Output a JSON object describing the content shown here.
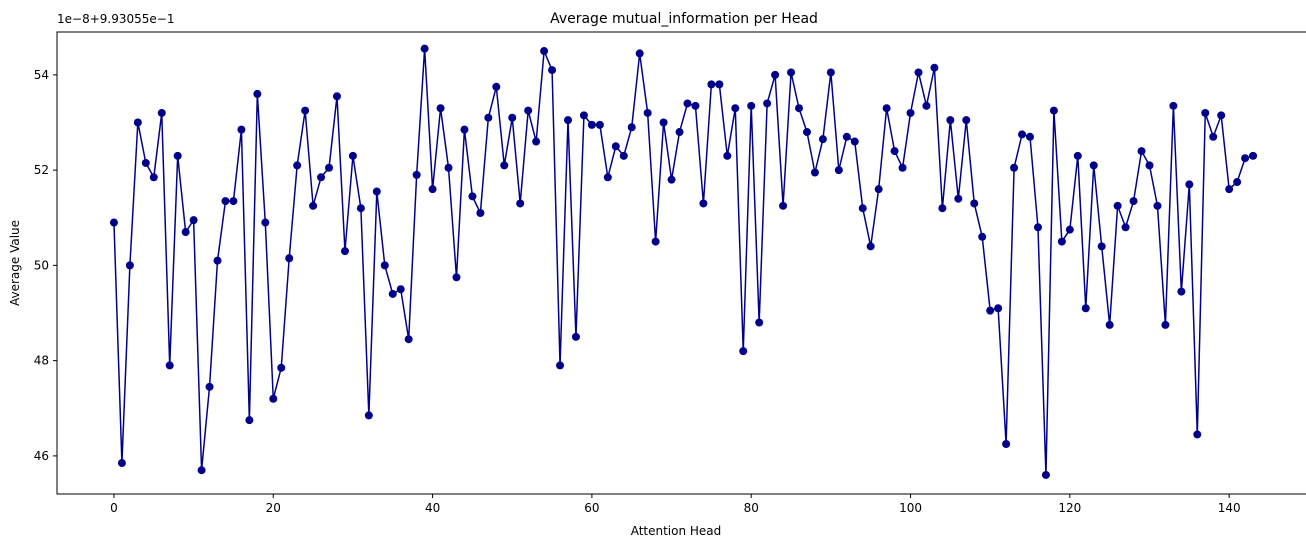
{
  "chart_data": {
    "type": "line",
    "title": "Average mutual_information per Head",
    "xlabel": "Attention Head",
    "ylabel": "Average Value",
    "offset_label": "1e−8+9.93055e−1",
    "xlim": [
      -7.15,
      150.15
    ],
    "ylim": [
      45.2,
      54.9
    ],
    "xticks": [
      0,
      20,
      40,
      60,
      80,
      100,
      120,
      140
    ],
    "yticks": [
      46,
      48,
      50,
      52,
      54
    ],
    "grid": false,
    "legend": "none",
    "series": [
      {
        "color": "#00008b",
        "marker": "circle",
        "x": [
          0,
          1,
          2,
          3,
          4,
          5,
          6,
          7,
          8,
          9,
          10,
          11,
          12,
          13,
          14,
          15,
          16,
          17,
          18,
          19,
          20,
          21,
          22,
          23,
          24,
          25,
          26,
          27,
          28,
          29,
          30,
          31,
          32,
          33,
          34,
          35,
          36,
          37,
          38,
          39,
          40,
          41,
          42,
          43,
          44,
          45,
          46,
          47,
          48,
          49,
          50,
          51,
          52,
          53,
          54,
          55,
          56,
          57,
          58,
          59,
          60,
          61,
          62,
          63,
          64,
          65,
          66,
          67,
          68,
          69,
          70,
          71,
          72,
          73,
          74,
          75,
          76,
          77,
          78,
          79,
          80,
          81,
          82,
          83,
          84,
          85,
          86,
          87,
          88,
          89,
          90,
          91,
          92,
          93,
          94,
          95,
          96,
          97,
          98,
          99,
          100,
          101,
          102,
          103,
          104,
          105,
          106,
          107,
          108,
          109,
          110,
          111,
          112,
          113,
          114,
          115,
          116,
          117,
          118,
          119,
          120,
          121,
          122,
          123,
          124,
          125,
          126,
          127,
          128,
          129,
          130,
          131,
          132,
          133,
          134,
          135,
          136,
          137,
          138,
          139,
          140,
          141,
          142,
          143
        ],
        "values": [
          50.9,
          45.85,
          50.0,
          53.0,
          52.15,
          51.85,
          53.2,
          47.9,
          52.3,
          50.7,
          50.95,
          45.7,
          47.45,
          50.1,
          51.35,
          51.35,
          52.85,
          46.75,
          53.6,
          50.9,
          47.2,
          47.85,
          50.15,
          52.1,
          53.25,
          51.25,
          51.85,
          52.05,
          53.55,
          50.3,
          52.3,
          51.2,
          46.85,
          51.55,
          50.0,
          49.4,
          49.5,
          48.45,
          51.9,
          54.55,
          51.6,
          53.3,
          52.05,
          49.75,
          52.85,
          51.45,
          51.1,
          53.1,
          53.75,
          52.1,
          53.1,
          51.3,
          53.25,
          52.6,
          54.5,
          54.1,
          47.9,
          53.05,
          48.5,
          53.15,
          52.95,
          52.95,
          51.85,
          52.5,
          52.3,
          52.9,
          54.45,
          53.2,
          50.5,
          53.0,
          51.8,
          52.8,
          53.4,
          53.35,
          51.3,
          53.8,
          53.8,
          52.3,
          53.3,
          48.2,
          53.35,
          48.8,
          53.4,
          54.0,
          51.25,
          54.05,
          53.3,
          52.8,
          51.95,
          52.65,
          54.05,
          52.0,
          52.7,
          52.6,
          51.2,
          50.4,
          51.6,
          53.3,
          52.4,
          52.05,
          53.2,
          54.05,
          53.35,
          54.15,
          51.2,
          53.05,
          51.4,
          53.05,
          51.3,
          50.6,
          49.05,
          49.1,
          46.25,
          52.05,
          52.75,
          52.7,
          50.8,
          45.6,
          53.25,
          50.5,
          50.75,
          52.3,
          49.1,
          52.1,
          50.4,
          48.75,
          51.25,
          50.8,
          51.35,
          52.4,
          52.1,
          51.25,
          48.75,
          53.35,
          49.45,
          51.7,
          46.45,
          53.2,
          52.7,
          53.15,
          51.6,
          51.75,
          52.25,
          52.3
        ]
      }
    ]
  }
}
